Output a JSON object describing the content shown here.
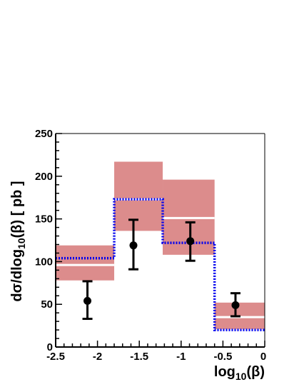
{
  "chart_data": {
    "type": "histogram",
    "xlabel": "log10(β)",
    "ylabel": "dσ/dlog10(β) [ pb ]",
    "xlim": [
      -2.5,
      0
    ],
    "ylim": [
      0,
      250
    ],
    "x_ticks": [
      "-2.5",
      "-2",
      "-1.5",
      "-1",
      "-0.5",
      "0"
    ],
    "y_ticks": [
      "0",
      "50",
      "100",
      "150",
      "200",
      "250"
    ],
    "bins": [
      {
        "x_low": -2.5,
        "x_high": -1.8,
        "x_center": -2.12,
        "band_low": 78,
        "band_high": 119,
        "band_central": 96,
        "prediction": 104,
        "data": 54,
        "data_err_low": 33,
        "data_err_high": 77
      },
      {
        "x_low": -1.8,
        "x_high": -1.22,
        "x_center": -1.57,
        "band_low": 136,
        "band_high": 217,
        "band_central": 173,
        "prediction": 173,
        "data": 119,
        "data_err_low": 91,
        "data_err_high": 149
      },
      {
        "x_low": -1.22,
        "x_high": -0.6,
        "x_center": -0.89,
        "band_low": 108,
        "band_high": 196,
        "band_central": 151,
        "prediction": 122,
        "data": 124,
        "data_err_low": 101,
        "data_err_high": 146
      },
      {
        "x_low": -0.6,
        "x_high": 0,
        "x_center": -0.35,
        "band_low": 21,
        "band_high": 52,
        "band_central": 35,
        "prediction": 20,
        "data": 49,
        "data_err_low": 36,
        "data_err_high": 63
      }
    ],
    "colors": {
      "band": "#dc8c8c",
      "band_central": "#ffffff",
      "prediction": "#0000ee",
      "data": "#000000",
      "axis": "#000000"
    }
  }
}
